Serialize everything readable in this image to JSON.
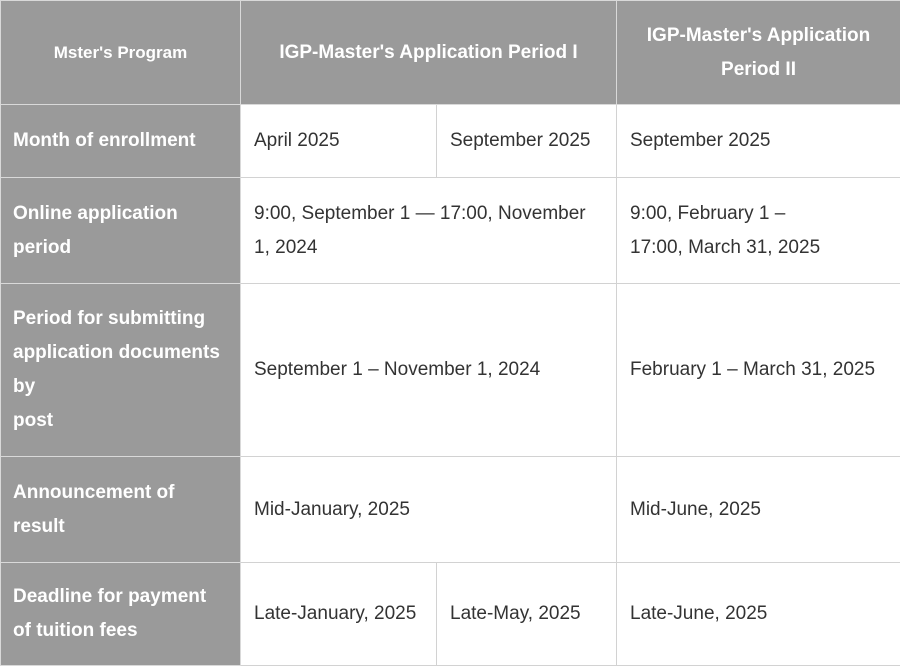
{
  "header": {
    "corner": "Mster's Program",
    "period1": "IGP-Master's Application Period I",
    "period2": "IGP-Master's Application Period II"
  },
  "rows": [
    {
      "label": "Month of enrollment",
      "p1a": "April 2025",
      "p1b": "September 2025",
      "p2": "September 2025"
    },
    {
      "label": "Online application period",
      "p1": "9:00, September 1 — 17:00, November 1, 2024",
      "p2_line1": "9:00, February 1 –",
      "p2_line2": "17:00, March 31, 2025"
    },
    {
      "label_line1": "Period for submitting application documents by",
      "label_line2": "post",
      "p1": "September 1 – November 1, 2024",
      "p2": "February 1 – March 31, 2025"
    },
    {
      "label": "Announcement of result",
      "p1": "Mid-January, 2025",
      "p2": "Mid-June, 2025"
    },
    {
      "label": "Deadline for payment of tuition fees",
      "p1a": "Late-January, 2025",
      "p1b": "Late-May, 2025",
      "p2": "Late-June, 2025"
    }
  ]
}
